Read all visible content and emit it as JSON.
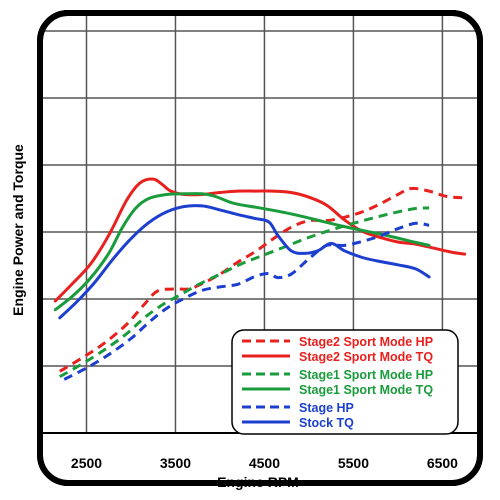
{
  "chart_data": {
    "type": "line",
    "title": "",
    "xlabel": "Engine RPM",
    "ylabel": "Engine Power and Torque",
    "xlim": [
      2000,
      6900
    ],
    "x_ticks": [
      2500,
      3500,
      4500,
      5500,
      6500
    ],
    "x_tick_labels": [
      "2500",
      "3500",
      "4500",
      "5500",
      "6500"
    ],
    "y_ticks": [
      1,
      2,
      3,
      4,
      5,
      6
    ],
    "y_tick_labels": [],
    "grid": true,
    "legend_position": "bottom-right",
    "series": [
      {
        "name": "Stage2 Sport Mode HP",
        "color": "#e8201e",
        "style": "dashed",
        "points": [
          [
            2200,
            0.92
          ],
          [
            2450,
            1.12
          ],
          [
            2700,
            1.34
          ],
          [
            2950,
            1.62
          ],
          [
            3150,
            1.92
          ],
          [
            3300,
            2.12
          ],
          [
            3500,
            2.15
          ],
          [
            3650,
            2.15
          ],
          [
            3800,
            2.23
          ],
          [
            4000,
            2.37
          ],
          [
            4200,
            2.55
          ],
          [
            4400,
            2.71
          ],
          [
            4600,
            2.9
          ],
          [
            4800,
            3.07
          ],
          [
            5000,
            3.17
          ],
          [
            5200,
            3.17
          ],
          [
            5400,
            3.22
          ],
          [
            5600,
            3.3
          ],
          [
            5800,
            3.42
          ],
          [
            6000,
            3.56
          ],
          [
            6150,
            3.65
          ],
          [
            6350,
            3.61
          ],
          [
            6550,
            3.53
          ],
          [
            6750,
            3.51
          ]
        ]
      },
      {
        "name": "Stage2 Sport Mode TQ",
        "color": "#e8201e",
        "style": "solid",
        "points": [
          [
            2150,
            1.97
          ],
          [
            2350,
            2.24
          ],
          [
            2550,
            2.53
          ],
          [
            2750,
            2.95
          ],
          [
            2950,
            3.47
          ],
          [
            3100,
            3.73
          ],
          [
            3250,
            3.79
          ],
          [
            3350,
            3.71
          ],
          [
            3450,
            3.61
          ],
          [
            3600,
            3.56
          ],
          [
            3800,
            3.56
          ],
          [
            4000,
            3.59
          ],
          [
            4200,
            3.61
          ],
          [
            4400,
            3.61
          ],
          [
            4600,
            3.61
          ],
          [
            4800,
            3.59
          ],
          [
            5000,
            3.52
          ],
          [
            5200,
            3.4
          ],
          [
            5400,
            3.18
          ],
          [
            5600,
            3.01
          ],
          [
            5800,
            2.92
          ],
          [
            6000,
            2.85
          ],
          [
            6200,
            2.82
          ],
          [
            6400,
            2.76
          ],
          [
            6600,
            2.7
          ],
          [
            6750,
            2.67
          ]
        ]
      },
      {
        "name": "Stage1 Sport Mode HP",
        "color": "#1a9b3c",
        "style": "dashed",
        "points": [
          [
            2200,
            0.84
          ],
          [
            2450,
            1.03
          ],
          [
            2700,
            1.24
          ],
          [
            2950,
            1.48
          ],
          [
            3150,
            1.72
          ],
          [
            3350,
            1.91
          ],
          [
            3550,
            2.06
          ],
          [
            3750,
            2.21
          ],
          [
            4000,
            2.37
          ],
          [
            4250,
            2.53
          ],
          [
            4500,
            2.66
          ],
          [
            4750,
            2.79
          ],
          [
            5000,
            2.92
          ],
          [
            5250,
            3.03
          ],
          [
            5500,
            3.13
          ],
          [
            5750,
            3.22
          ],
          [
            6000,
            3.3
          ],
          [
            6200,
            3.35
          ],
          [
            6350,
            3.36
          ]
        ]
      },
      {
        "name": "Stage1 Sport Mode TQ",
        "color": "#1a9b3c",
        "style": "solid",
        "points": [
          [
            2150,
            1.84
          ],
          [
            2350,
            2.05
          ],
          [
            2550,
            2.32
          ],
          [
            2750,
            2.68
          ],
          [
            2900,
            3.06
          ],
          [
            3050,
            3.35
          ],
          [
            3200,
            3.5
          ],
          [
            3400,
            3.56
          ],
          [
            3600,
            3.57
          ],
          [
            3800,
            3.57
          ],
          [
            3950,
            3.53
          ],
          [
            4150,
            3.43
          ],
          [
            4400,
            3.37
          ],
          [
            4650,
            3.31
          ],
          [
            4900,
            3.24
          ],
          [
            5150,
            3.16
          ],
          [
            5400,
            3.08
          ],
          [
            5650,
            3.01
          ],
          [
            5900,
            2.94
          ],
          [
            6150,
            2.86
          ],
          [
            6350,
            2.8
          ]
        ]
      },
      {
        "name": "Stage HP",
        "color": "#1c3fcf",
        "style": "dashed",
        "points": [
          [
            2250,
            0.8
          ],
          [
            2500,
            0.97
          ],
          [
            2750,
            1.17
          ],
          [
            3000,
            1.41
          ],
          [
            3200,
            1.65
          ],
          [
            3400,
            1.86
          ],
          [
            3600,
            2.01
          ],
          [
            3800,
            2.13
          ],
          [
            4000,
            2.18
          ],
          [
            4200,
            2.22
          ],
          [
            4400,
            2.34
          ],
          [
            4550,
            2.38
          ],
          [
            4650,
            2.32
          ],
          [
            4800,
            2.37
          ],
          [
            5000,
            2.6
          ],
          [
            5200,
            2.8
          ],
          [
            5400,
            2.8
          ],
          [
            5600,
            2.86
          ],
          [
            5800,
            2.94
          ],
          [
            6000,
            3.05
          ],
          [
            6200,
            3.13
          ],
          [
            6350,
            3.1
          ]
        ]
      },
      {
        "name": "Stock TQ",
        "color": "#1c3fcf",
        "style": "solid",
        "points": [
          [
            2200,
            1.72
          ],
          [
            2400,
            1.97
          ],
          [
            2600,
            2.26
          ],
          [
            2800,
            2.6
          ],
          [
            3000,
            2.9
          ],
          [
            3200,
            3.14
          ],
          [
            3400,
            3.3
          ],
          [
            3600,
            3.38
          ],
          [
            3800,
            3.39
          ],
          [
            4000,
            3.33
          ],
          [
            4200,
            3.26
          ],
          [
            4400,
            3.2
          ],
          [
            4550,
            3.15
          ],
          [
            4650,
            2.95
          ],
          [
            4800,
            2.72
          ],
          [
            4950,
            2.68
          ],
          [
            5100,
            2.72
          ],
          [
            5250,
            2.83
          ],
          [
            5400,
            2.72
          ],
          [
            5600,
            2.62
          ],
          [
            5800,
            2.56
          ],
          [
            6000,
            2.51
          ],
          [
            6200,
            2.45
          ],
          [
            6350,
            2.33
          ]
        ]
      }
    ]
  }
}
